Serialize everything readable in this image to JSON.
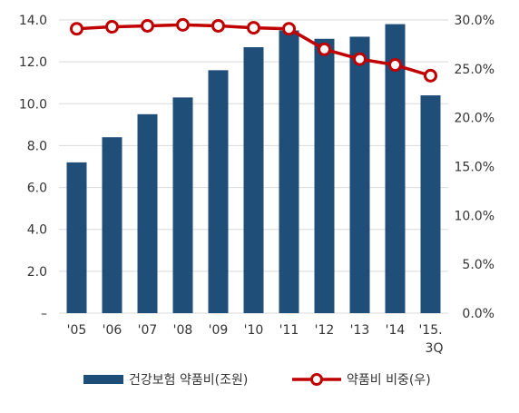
{
  "chart_data": {
    "type": "bar+line",
    "categories": [
      "'05",
      "'06",
      "'07",
      "'08",
      "'09",
      "'10",
      "'11",
      "'12",
      "'13",
      "'14",
      "'15."
    ],
    "category_sublabels": [
      "",
      "",
      "",
      "",
      "",
      "",
      "",
      "",
      "",
      "",
      "3Q"
    ],
    "series": [
      {
        "name": "건강보험 약품비(조원)",
        "type": "bar",
        "axis": "left",
        "color": "#1F4E79",
        "values": [
          7.2,
          8.4,
          9.5,
          10.3,
          11.6,
          12.7,
          13.5,
          13.1,
          13.2,
          13.8,
          10.4
        ]
      },
      {
        "name": "약품비 비중(우)",
        "type": "line",
        "axis": "right",
        "color": "#C00000",
        "values": [
          29.1,
          29.3,
          29.4,
          29.5,
          29.4,
          29.2,
          29.1,
          27.0,
          26.0,
          25.4,
          24.3
        ]
      }
    ],
    "y_left": {
      "range": [
        0,
        14
      ],
      "ticks": [
        0,
        2,
        4,
        6,
        8,
        10,
        12,
        14
      ],
      "tick_labels": [
        "–",
        "2.0",
        "4.0",
        "6.0",
        "8.0",
        "10.0",
        "12.0",
        "14.0"
      ]
    },
    "y_right": {
      "range": [
        0,
        30
      ],
      "ticks": [
        0,
        5,
        10,
        15,
        20,
        25,
        30
      ],
      "tick_labels": [
        "0.0%",
        "5.0%",
        "10.0%",
        "15.0%",
        "20.0%",
        "25.0%",
        "30.0%"
      ]
    },
    "grid": true,
    "grid_color": "#D9D9D9",
    "legend_position": "bottom"
  }
}
